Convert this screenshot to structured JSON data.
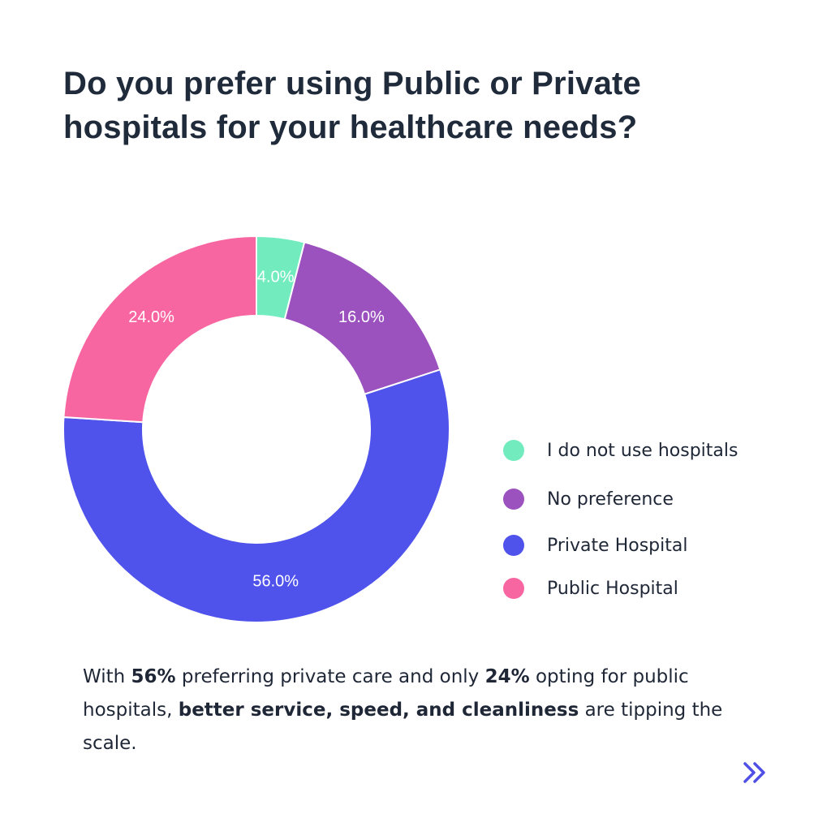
{
  "title": {
    "line1": "Do you prefer using Public or Private",
    "line2": "hospitals for your healthcare needs?"
  },
  "chart_data": {
    "type": "pie",
    "variant": "donut",
    "categories": [
      "I do not use hospitals",
      "No preference",
      "Private Hospital",
      "Public Hospital"
    ],
    "values": [
      4.0,
      16.0,
      56.0,
      24.0
    ],
    "labels": [
      "4.0%",
      "16.0%",
      "56.0%",
      "24.0%"
    ],
    "colors": [
      "#72ecbf",
      "#9b51be",
      "#4f52eb",
      "#f866a1"
    ],
    "legend_position": "right"
  },
  "summary": {
    "t1": "With ",
    "b1": "56%",
    "t2": " preferring private care and only ",
    "b2": "24%",
    "t3": " opting for public hospitals, ",
    "b3": "better service, speed, and cleanliness",
    "t4": " are tipping the scale."
  },
  "navigation": {
    "next_icon": "double-chevron-right-icon",
    "icon_color": "#5050e6"
  }
}
